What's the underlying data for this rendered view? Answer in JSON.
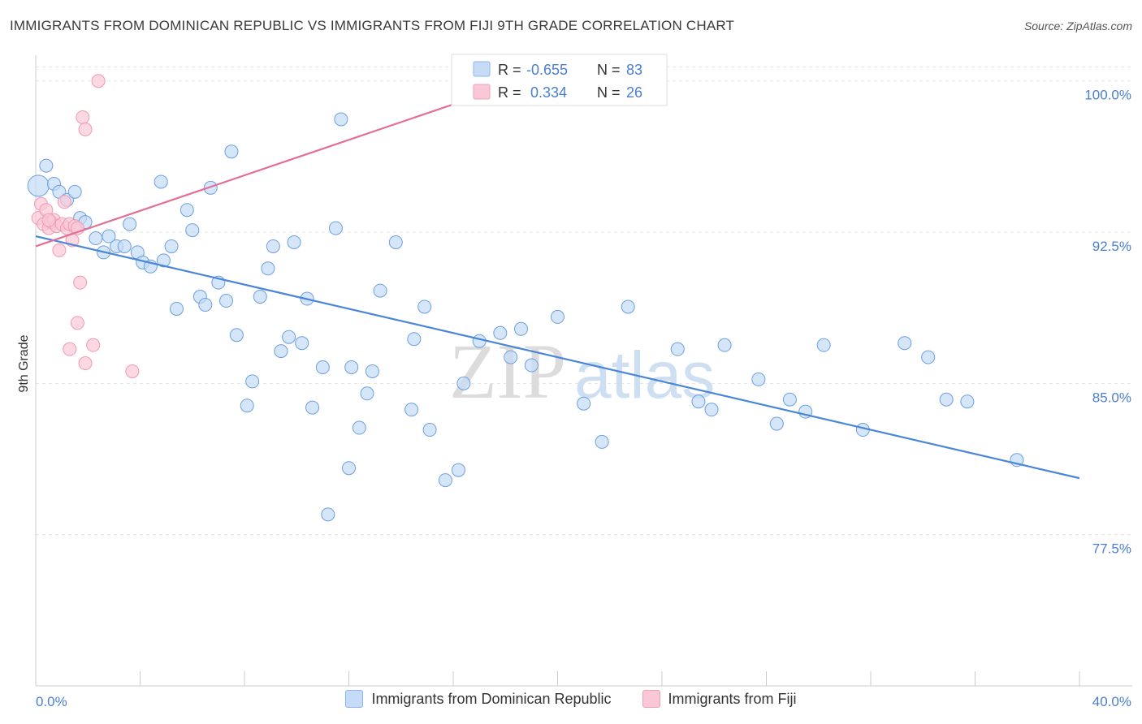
{
  "title": "IMMIGRANTS FROM DOMINICAN REPUBLIC VS IMMIGRANTS FROM FIJI 9TH GRADE CORRELATION CHART",
  "source": "Source: ZipAtlas.com",
  "watermark": {
    "zip": "ZIP",
    "atlas": "atlas"
  },
  "legend_box": {
    "rows": [
      {
        "r_label": "R =",
        "r_value": "-0.655",
        "n_label": "N =",
        "n_value": "83"
      },
      {
        "r_label": "R =",
        "r_value": " 0.334",
        "n_label": "N =",
        "n_value": "26"
      }
    ]
  },
  "chart_data": {
    "type": "scatter",
    "ylabel": "9th Grade",
    "xlim": [
      0,
      40
    ],
    "ylim": [
      70,
      101.6
    ],
    "x_tick_labels": [
      "0.0%",
      "40.0%"
    ],
    "y_ticks": [
      77.5,
      85.0,
      92.5,
      100.0
    ],
    "y_tick_labels": [
      "77.5%",
      "85.0%",
      "92.5%",
      "100.0%"
    ],
    "grid": true,
    "legend_position": "bottom",
    "colors": {
      "blue": "#4a86d8",
      "blue_fill": "#c5dbf7",
      "pink": "#e46f94",
      "pink_fill": "#f9c7d6",
      "tick_text": "#4a7fd0"
    },
    "series": [
      {
        "name": "Immigrants from Dominican Republic",
        "color": "blue",
        "r": "-0.655",
        "n": 83,
        "trend": [
          [
            0,
            92.3
          ],
          [
            40,
            80.3
          ]
        ],
        "points": [
          [
            0.1,
            94.8,
            "lg"
          ],
          [
            0.4,
            95.8,
            "md"
          ],
          [
            0.7,
            94.9,
            "md"
          ],
          [
            0.9,
            94.5,
            "md"
          ],
          [
            1.2,
            94.1,
            "md"
          ],
          [
            1.5,
            94.5,
            "md"
          ],
          [
            1.7,
            93.2,
            "md"
          ],
          [
            1.9,
            93.0,
            "md"
          ],
          [
            2.3,
            92.2,
            "md"
          ],
          [
            2.6,
            91.5,
            "md"
          ],
          [
            2.8,
            92.3,
            "md"
          ],
          [
            3.1,
            91.8,
            "md"
          ],
          [
            3.4,
            91.8,
            "md"
          ],
          [
            3.6,
            92.9,
            "md"
          ],
          [
            3.9,
            91.5,
            "md"
          ],
          [
            4.1,
            91.0,
            "md"
          ],
          [
            4.4,
            90.8,
            "md"
          ],
          [
            4.8,
            95.0,
            "md"
          ],
          [
            4.9,
            91.1,
            "md"
          ],
          [
            5.2,
            91.8,
            "md"
          ],
          [
            5.4,
            88.7,
            "md"
          ],
          [
            5.8,
            93.6,
            "md"
          ],
          [
            6.0,
            92.6,
            "md"
          ],
          [
            6.3,
            89.3,
            "md"
          ],
          [
            6.5,
            88.9,
            "md"
          ],
          [
            6.7,
            94.7,
            "md"
          ],
          [
            7.0,
            90.0,
            "md"
          ],
          [
            7.3,
            89.1,
            "md"
          ],
          [
            7.5,
            96.5,
            "md"
          ],
          [
            7.7,
            87.4,
            "md"
          ],
          [
            8.1,
            83.9,
            "md"
          ],
          [
            8.3,
            85.1,
            "md"
          ],
          [
            8.6,
            89.3,
            "md"
          ],
          [
            8.9,
            90.7,
            "md"
          ],
          [
            9.1,
            91.8,
            "md"
          ],
          [
            9.4,
            86.6,
            "md"
          ],
          [
            9.7,
            87.3,
            "md"
          ],
          [
            9.9,
            92.0,
            "md"
          ],
          [
            10.2,
            87.0,
            "md"
          ],
          [
            10.4,
            89.2,
            "md"
          ],
          [
            10.6,
            83.8,
            "md"
          ],
          [
            11.0,
            85.8,
            "md"
          ],
          [
            11.2,
            78.5,
            "md"
          ],
          [
            11.5,
            92.7,
            "md"
          ],
          [
            11.7,
            98.1,
            "md"
          ],
          [
            12.0,
            80.8,
            "md"
          ],
          [
            12.1,
            85.8,
            "md"
          ],
          [
            12.4,
            82.8,
            "md"
          ],
          [
            12.7,
            84.5,
            "md"
          ],
          [
            12.9,
            85.6,
            "md"
          ],
          [
            13.2,
            89.6,
            "md"
          ],
          [
            13.8,
            92.0,
            "md"
          ],
          [
            14.4,
            83.7,
            "md"
          ],
          [
            14.5,
            87.2,
            "md"
          ],
          [
            14.9,
            88.8,
            "md"
          ],
          [
            15.1,
            82.7,
            "md"
          ],
          [
            15.7,
            80.2,
            "md"
          ],
          [
            16.2,
            80.7,
            "md"
          ],
          [
            16.4,
            85.0,
            "md"
          ],
          [
            17.0,
            87.1,
            "md"
          ],
          [
            17.8,
            87.5,
            "md"
          ],
          [
            18.2,
            86.3,
            "md"
          ],
          [
            18.6,
            87.7,
            "md"
          ],
          [
            19.0,
            85.9,
            "md"
          ],
          [
            20.0,
            88.3,
            "md"
          ],
          [
            21.0,
            84.0,
            "md"
          ],
          [
            21.7,
            82.1,
            "md"
          ],
          [
            22.7,
            88.8,
            "md"
          ],
          [
            24.6,
            86.7,
            "md"
          ],
          [
            25.4,
            84.1,
            "md"
          ],
          [
            25.9,
            83.7,
            "md"
          ],
          [
            26.4,
            86.9,
            "md"
          ],
          [
            27.7,
            85.2,
            "md"
          ],
          [
            28.4,
            83.0,
            "md"
          ],
          [
            28.9,
            84.2,
            "md"
          ],
          [
            29.5,
            83.6,
            "md"
          ],
          [
            30.2,
            86.9,
            "md"
          ],
          [
            31.7,
            82.7,
            "md"
          ],
          [
            33.3,
            87.0,
            "md"
          ],
          [
            34.2,
            86.3,
            "md"
          ],
          [
            34.9,
            84.2,
            "md"
          ],
          [
            35.7,
            84.1,
            "md"
          ],
          [
            37.6,
            81.2,
            "md"
          ]
        ]
      },
      {
        "name": "Immigrants from Fiji",
        "color": "pink",
        "r": "0.334",
        "n": 26,
        "trend": [
          [
            0,
            91.8
          ],
          [
            20,
            100.6
          ]
        ],
        "points": [
          [
            0.1,
            93.2,
            "md"
          ],
          [
            0.2,
            93.9,
            "md"
          ],
          [
            0.3,
            92.9,
            "md"
          ],
          [
            0.4,
            93.6,
            "md"
          ],
          [
            0.5,
            92.7,
            "md"
          ],
          [
            0.6,
            93.0,
            "md"
          ],
          [
            0.7,
            93.1,
            "md"
          ],
          [
            0.8,
            92.8,
            "md"
          ],
          [
            0.9,
            91.6,
            "md"
          ],
          [
            1.0,
            92.9,
            "md"
          ],
          [
            1.1,
            94.0,
            "md"
          ],
          [
            1.2,
            92.7,
            "md"
          ],
          [
            1.3,
            92.9,
            "md"
          ],
          [
            1.4,
            92.1,
            "md"
          ],
          [
            1.5,
            92.8,
            "md"
          ],
          [
            1.6,
            92.7,
            "md"
          ],
          [
            1.3,
            86.7,
            "md"
          ],
          [
            1.6,
            88.0,
            "md"
          ],
          [
            1.7,
            90.0,
            "md"
          ],
          [
            1.9,
            86.0,
            "md"
          ],
          [
            2.2,
            86.9,
            "md"
          ],
          [
            1.8,
            98.2,
            "md"
          ],
          [
            1.9,
            97.6,
            "md"
          ],
          [
            2.4,
            100.0,
            "md"
          ],
          [
            3.7,
            85.6,
            "md"
          ],
          [
            0.5,
            93.1,
            "md"
          ]
        ]
      }
    ]
  }
}
